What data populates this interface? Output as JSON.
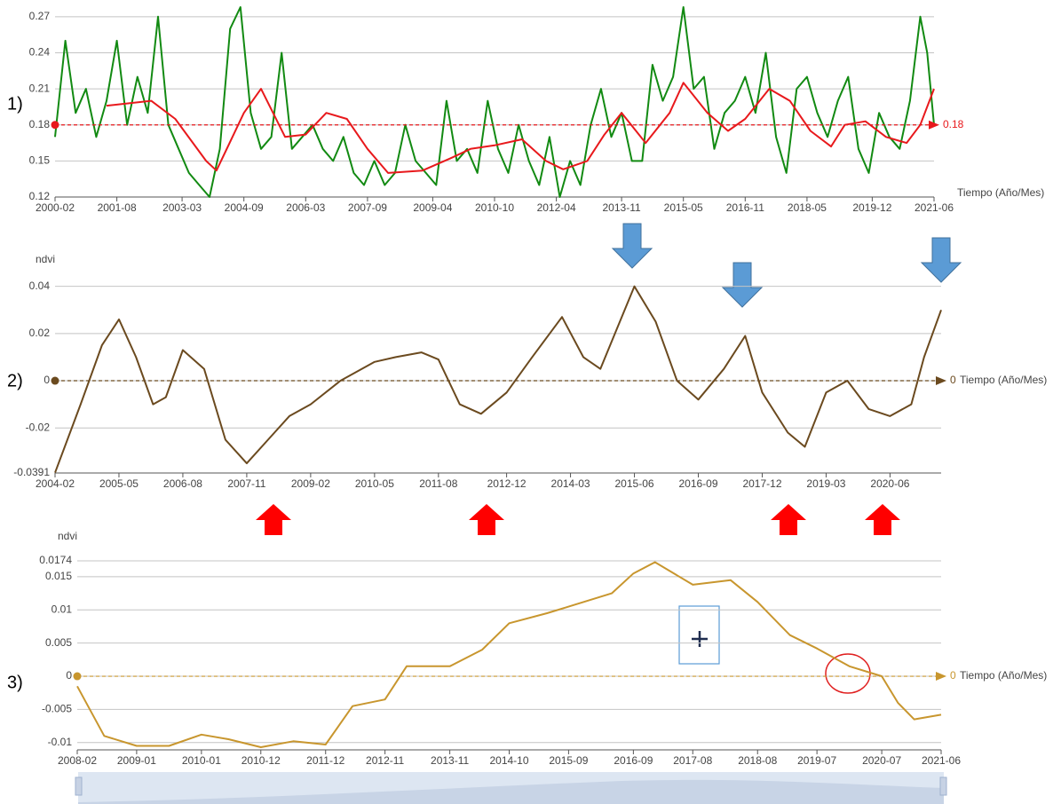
{
  "panels": [
    "1)",
    "2)",
    "3)"
  ],
  "chart_data": [
    {
      "type": "line",
      "x_axis_label": "Tiempo (Año/Mes)",
      "xlim": [
        "2000-02",
        "2021-06"
      ],
      "xticks": [
        "2000-02",
        "2001-08",
        "2003-03",
        "2004-09",
        "2006-03",
        "2007-09",
        "2009-04",
        "2010-10",
        "2012-04",
        "2013-11",
        "2015-05",
        "2016-11",
        "2018-05",
        "2019-12",
        "2021-06"
      ],
      "ylim": [
        0.12,
        0.278
      ],
      "yticks": [
        0.12,
        0.15,
        0.18,
        0.21,
        0.24,
        0.27
      ],
      "grid": true,
      "markline": {
        "value": 0.18,
        "color": "#e8191c"
      },
      "series": [
        {
          "color": "#128a12",
          "x": [
            "2000-02",
            "2000-05",
            "2000-08",
            "2000-11",
            "2001-02",
            "2001-05",
            "2001-08",
            "2001-11",
            "2002-02",
            "2002-05",
            "2002-08",
            "2002-11",
            "2003-02",
            "2003-05",
            "2003-08",
            "2003-11",
            "2004-02",
            "2004-05",
            "2004-08",
            "2004-11",
            "2005-02",
            "2005-05",
            "2005-08",
            "2005-11",
            "2006-02",
            "2006-05",
            "2006-08",
            "2006-11",
            "2007-02",
            "2007-05",
            "2007-08",
            "2007-11",
            "2008-02",
            "2008-05",
            "2008-08",
            "2008-11",
            "2009-02",
            "2009-05",
            "2009-08",
            "2009-11",
            "2010-02",
            "2010-05",
            "2010-08",
            "2010-11",
            "2011-02",
            "2011-05",
            "2011-08",
            "2011-11",
            "2012-02",
            "2012-05",
            "2012-08",
            "2012-11",
            "2013-02",
            "2013-05",
            "2013-08",
            "2013-11",
            "2014-02",
            "2014-05",
            "2014-08",
            "2014-11",
            "2015-02",
            "2015-05",
            "2015-08",
            "2015-11",
            "2016-02",
            "2016-05",
            "2016-08",
            "2016-11",
            "2017-02",
            "2017-05",
            "2017-08",
            "2017-11",
            "2018-02",
            "2018-05",
            "2018-08",
            "2018-11",
            "2019-02",
            "2019-05",
            "2019-08",
            "2019-11",
            "2020-02",
            "2020-05",
            "2020-08",
            "2020-11",
            "2021-02",
            "2021-04",
            "2021-06"
          ],
          "values": [
            0.17,
            0.25,
            0.19,
            0.21,
            0.17,
            0.2,
            0.25,
            0.18,
            0.22,
            0.19,
            0.27,
            0.18,
            0.16,
            0.14,
            0.13,
            0.12,
            0.16,
            0.26,
            0.278,
            0.19,
            0.16,
            0.17,
            0.24,
            0.16,
            0.17,
            0.18,
            0.16,
            0.15,
            0.17,
            0.14,
            0.13,
            0.15,
            0.13,
            0.14,
            0.18,
            0.15,
            0.14,
            0.13,
            0.2,
            0.15,
            0.16,
            0.14,
            0.2,
            0.16,
            0.14,
            0.18,
            0.15,
            0.13,
            0.17,
            0.12,
            0.15,
            0.13,
            0.18,
            0.21,
            0.17,
            0.19,
            0.15,
            0.15,
            0.23,
            0.2,
            0.22,
            0.278,
            0.21,
            0.22,
            0.16,
            0.19,
            0.2,
            0.22,
            0.19,
            0.24,
            0.17,
            0.14,
            0.21,
            0.22,
            0.19,
            0.17,
            0.2,
            0.22,
            0.16,
            0.14,
            0.19,
            0.17,
            0.16,
            0.2,
            0.27,
            0.24,
            0.18
          ]
        },
        {
          "color": "#e8191c",
          "x": [
            "2001-05",
            "2002-06",
            "2003-01",
            "2003-10",
            "2004-01",
            "2004-09",
            "2005-02",
            "2005-09",
            "2006-03",
            "2006-09",
            "2007-03",
            "2007-09",
            "2008-03",
            "2009-01",
            "2009-09",
            "2010-03",
            "2010-10",
            "2011-06",
            "2012-01",
            "2012-06",
            "2013-01",
            "2013-06",
            "2013-11",
            "2014-06",
            "2015-01",
            "2015-05",
            "2015-12",
            "2016-06",
            "2016-11",
            "2017-06",
            "2017-12",
            "2018-06",
            "2018-12",
            "2019-04",
            "2019-10",
            "2020-04",
            "2020-10",
            "2021-02",
            "2021-06"
          ],
          "values": [
            0.196,
            0.2,
            0.185,
            0.15,
            0.142,
            0.19,
            0.21,
            0.17,
            0.172,
            0.19,
            0.185,
            0.16,
            0.14,
            0.142,
            0.152,
            0.16,
            0.163,
            0.168,
            0.15,
            0.143,
            0.15,
            0.172,
            0.19,
            0.165,
            0.19,
            0.215,
            0.19,
            0.175,
            0.185,
            0.21,
            0.2,
            0.175,
            0.162,
            0.18,
            0.183,
            0.17,
            0.165,
            0.18,
            0.21
          ]
        }
      ]
    },
    {
      "type": "line",
      "x_axis_label": "Tiempo (Año/Mes)",
      "y_axis_label": "ndvi",
      "xlim": [
        "2004-02",
        "2021-06"
      ],
      "xticks": [
        "2004-02",
        "2005-05",
        "2006-08",
        "2007-11",
        "2009-02",
        "2010-05",
        "2011-08",
        "2012-12",
        "2014-03",
        "2015-06",
        "2016-09",
        "2017-12",
        "2019-03",
        "2020-06"
      ],
      "ylim": [
        -0.0391,
        0.041
      ],
      "yticks": [
        -0.0391,
        -0.02,
        0,
        0.02,
        0.04
      ],
      "grid": true,
      "markline": {
        "value": 0,
        "color": "#6b4a1f"
      },
      "series": [
        {
          "color": "#6b4a1f",
          "x": [
            "2004-02",
            "2004-08",
            "2005-01",
            "2005-05",
            "2005-09",
            "2006-01",
            "2006-04",
            "2006-08",
            "2007-01",
            "2007-06",
            "2007-11",
            "2008-04",
            "2008-09",
            "2009-02",
            "2009-09",
            "2010-05",
            "2010-10",
            "2011-04",
            "2011-08",
            "2012-01",
            "2012-06",
            "2012-12",
            "2013-06",
            "2014-01",
            "2014-06",
            "2014-10",
            "2015-06",
            "2015-11",
            "2016-04",
            "2016-09",
            "2017-03",
            "2017-08",
            "2017-12",
            "2018-06",
            "2018-10",
            "2019-03",
            "2019-08",
            "2020-01",
            "2020-06",
            "2020-11",
            "2021-02",
            "2021-06"
          ],
          "values": [
            -0.039,
            -0.01,
            0.015,
            0.026,
            0.01,
            -0.01,
            -0.007,
            0.013,
            0.005,
            -0.025,
            -0.035,
            -0.025,
            -0.015,
            -0.01,
            0,
            0.008,
            0.01,
            0.012,
            0.009,
            -0.01,
            -0.014,
            -0.005,
            0.01,
            0.027,
            0.01,
            0.005,
            0.04,
            0.025,
            0,
            -0.008,
            0.005,
            0.019,
            -0.005,
            -0.022,
            -0.028,
            -0.005,
            0,
            -0.012,
            -0.015,
            -0.01,
            0.01,
            0.03
          ]
        }
      ]
    },
    {
      "type": "line",
      "x_axis_label": "Tiempo (Año/Mes)",
      "y_axis_label": "ndvi",
      "xlim": [
        "2008-02",
        "2021-06"
      ],
      "xticks": [
        "2008-02",
        "2009-01",
        "2010-01",
        "2010-12",
        "2011-12",
        "2012-11",
        "2013-11",
        "2014-10",
        "2015-09",
        "2016-09",
        "2017-08",
        "2018-08",
        "2019-07",
        "2020-07",
        "2021-06"
      ],
      "ylim": [
        -0.0111,
        0.0174
      ],
      "yticks": [
        -0.01,
        -0.005,
        0,
        0.005,
        0.01,
        0.015,
        0.0174
      ],
      "grid": true,
      "markline": {
        "value": 0,
        "color": "#c8962e"
      },
      "series": [
        {
          "color": "#c8962e",
          "x": [
            "2008-02",
            "2008-07",
            "2009-01",
            "2009-07",
            "2010-01",
            "2010-06",
            "2010-12",
            "2011-06",
            "2011-12",
            "2012-05",
            "2012-11",
            "2013-03",
            "2013-11",
            "2014-05",
            "2014-10",
            "2015-05",
            "2015-09",
            "2016-05",
            "2016-09",
            "2017-01",
            "2017-08",
            "2018-03",
            "2018-08",
            "2019-02",
            "2019-07",
            "2020-01",
            "2020-07",
            "2020-10",
            "2021-01",
            "2021-06"
          ],
          "values": [
            -0.0015,
            -0.009,
            -0.0105,
            -0.0105,
            -0.0088,
            -0.0095,
            -0.0107,
            -0.0098,
            -0.0103,
            -0.0045,
            -0.0035,
            0.0015,
            0.0015,
            0.004,
            0.008,
            0.0095,
            0.0105,
            0.0125,
            0.0155,
            0.0172,
            0.0138,
            0.0145,
            0.0112,
            0.0062,
            0.0042,
            0.0015,
            0,
            -0.004,
            -0.0065,
            -0.0058
          ]
        }
      ]
    }
  ]
}
